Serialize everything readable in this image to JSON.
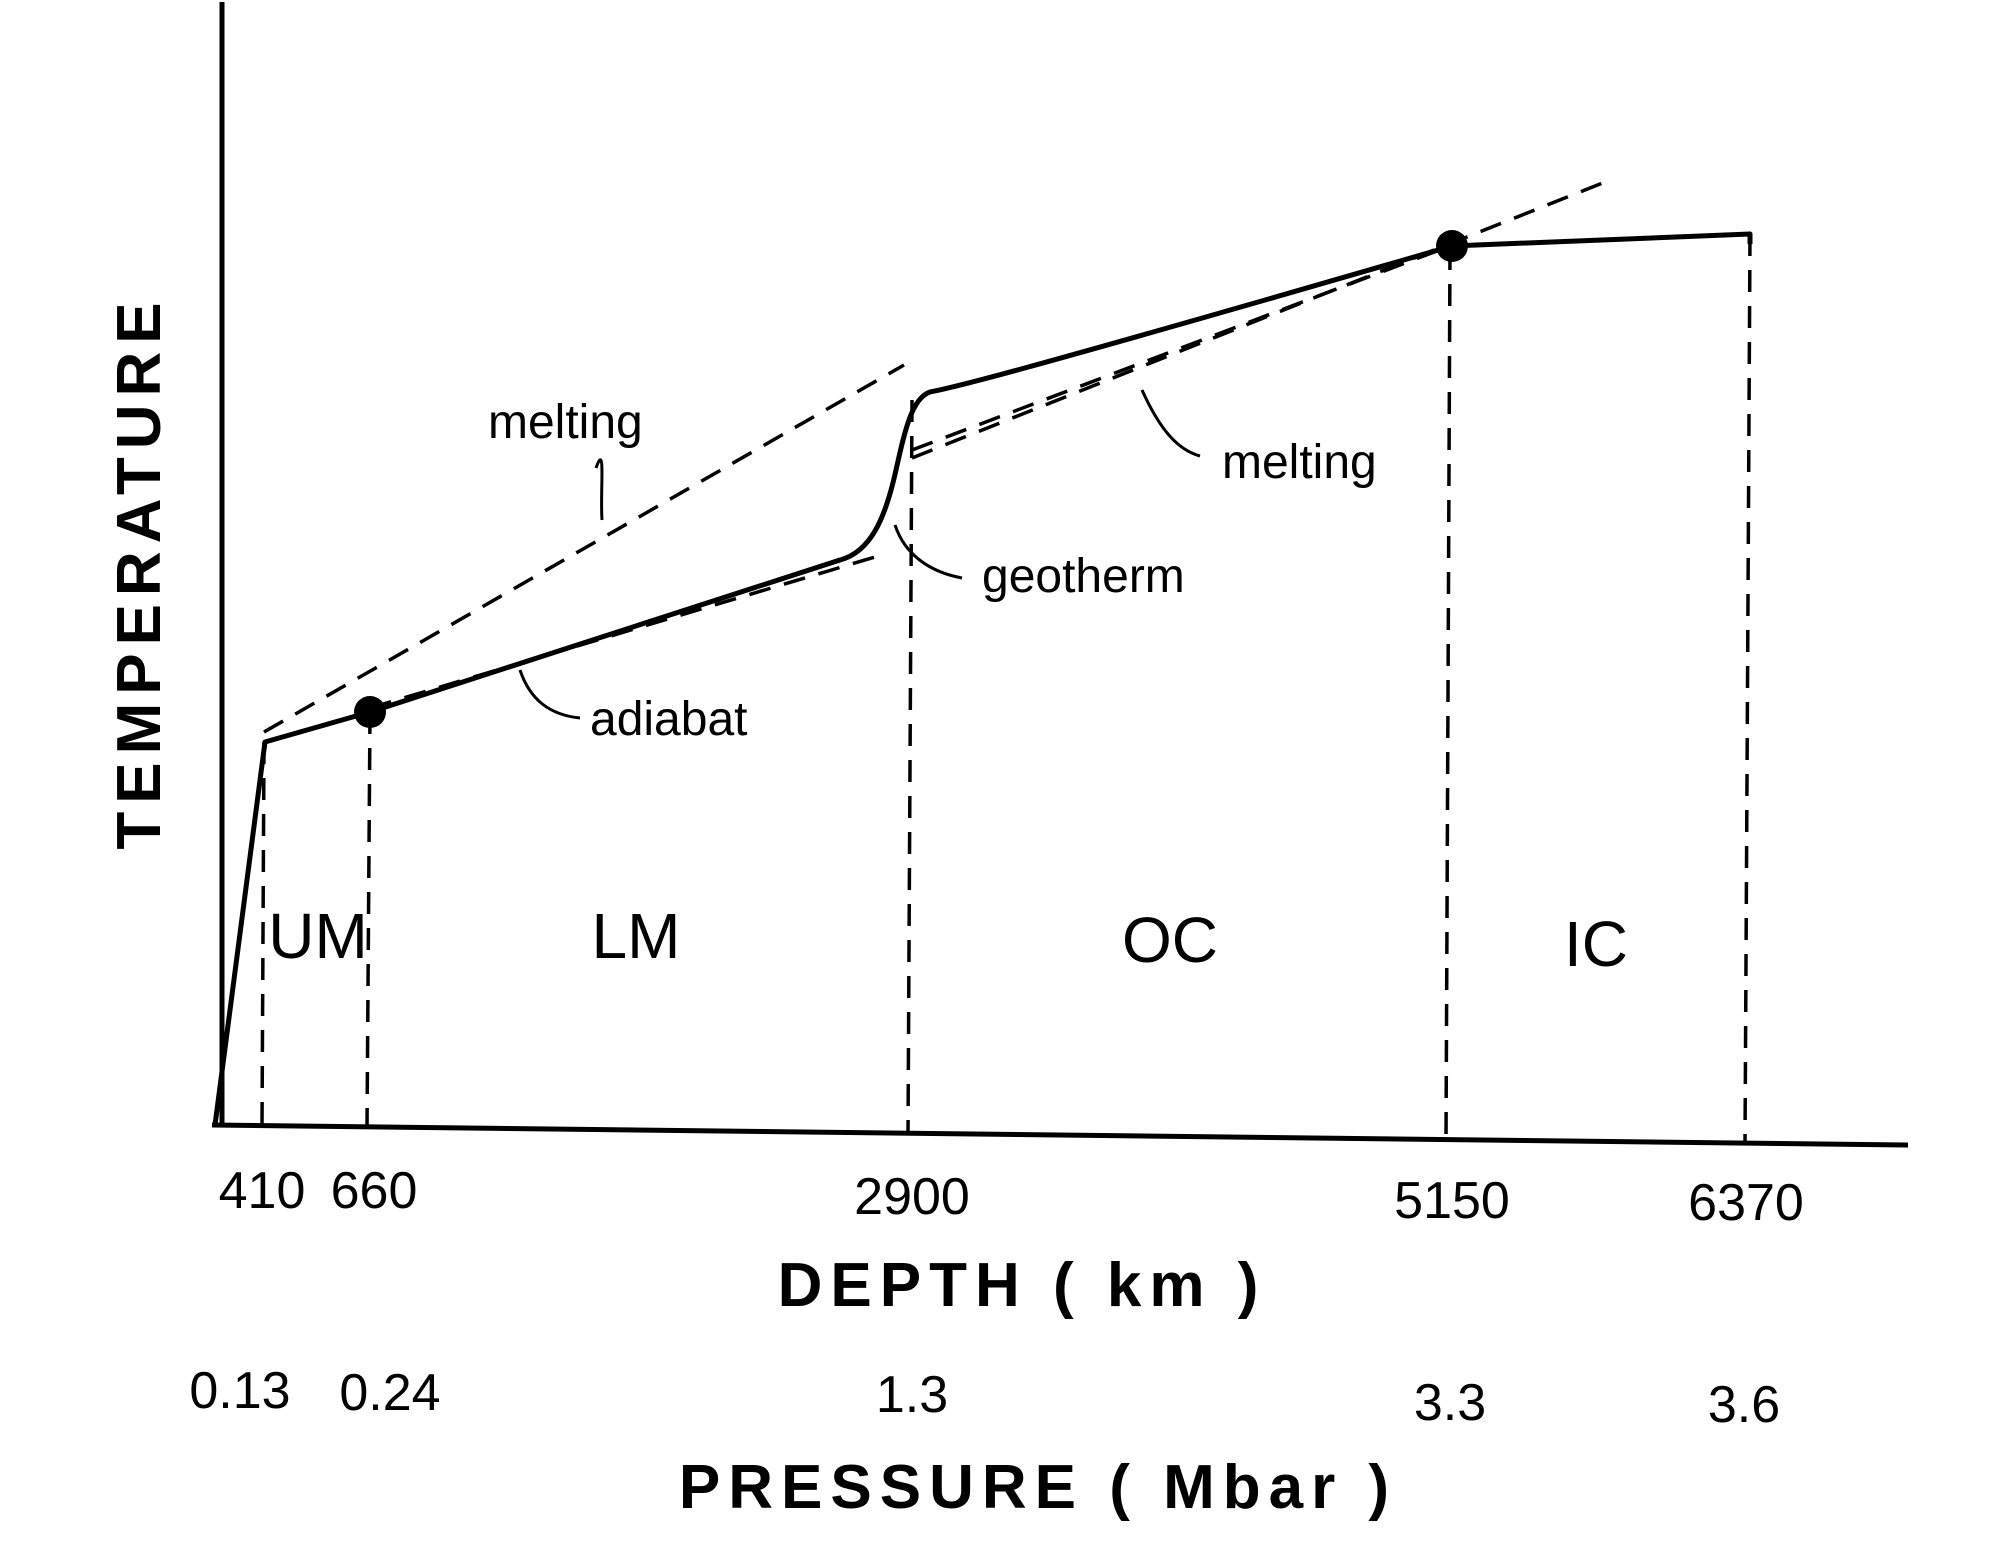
{
  "chart_data": {
    "type": "line",
    "xlabel": "DEPTH ( km )",
    "ylabel": "TEMPERATURE",
    "secondary_xlabel": "PRESSURE ( Mbar )",
    "depth_ticks": [
      "410",
      "660",
      "2900",
      "5150",
      "6370"
    ],
    "pressure_ticks": [
      "0.13",
      "0.24",
      "1.3",
      "3.3",
      "3.6"
    ],
    "regions": [
      "UM",
      "LM",
      "OC",
      "IC"
    ],
    "annotations": {
      "melting_mantle": "melting",
      "melting_core": "melting",
      "geotherm": "geotherm",
      "adiabat": "adiabat"
    },
    "series": [
      {
        "name": "geotherm",
        "style": "solid"
      },
      {
        "name": "adiabat",
        "style": "dashed"
      },
      {
        "name": "melting",
        "style": "dashed"
      }
    ]
  }
}
